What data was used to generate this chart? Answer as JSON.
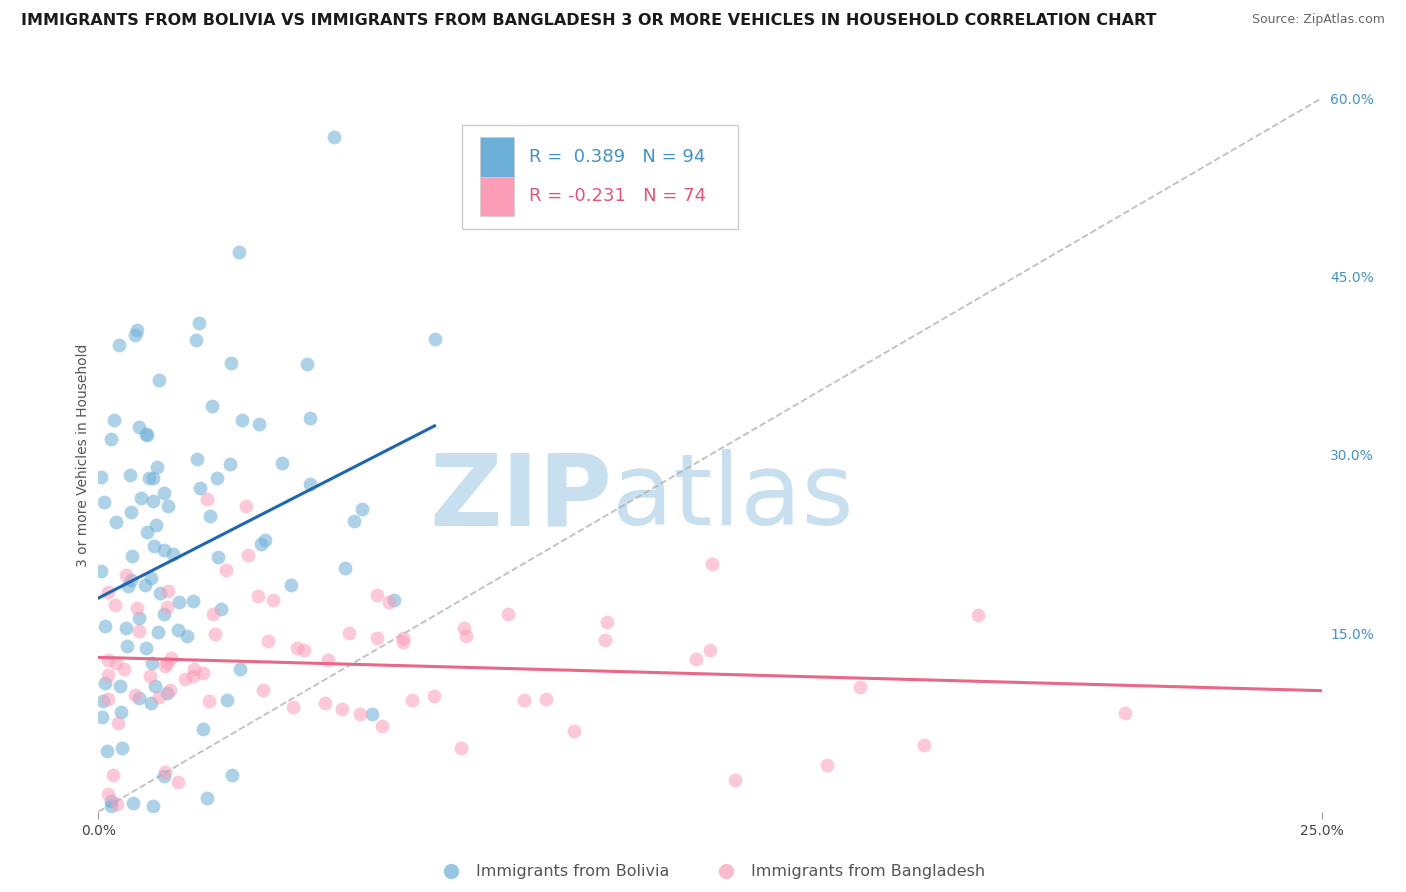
{
  "title": "IMMIGRANTS FROM BOLIVIA VS IMMIGRANTS FROM BANGLADESH 3 OR MORE VEHICLES IN HOUSEHOLD CORRELATION CHART",
  "source": "Source: ZipAtlas.com",
  "ylabel": "3 or more Vehicles in Household",
  "xlim": [
    0.0,
    0.25
  ],
  "ylim": [
    0.0,
    0.6
  ],
  "x_ticks": [
    0.0,
    0.25
  ],
  "x_tick_labels": [
    "0.0%",
    "25.0%"
  ],
  "y_ticks_right": [
    0.15,
    0.3,
    0.45,
    0.6
  ],
  "y_tick_labels_right": [
    "15.0%",
    "30.0%",
    "45.0%",
    "60.0%"
  ],
  "bolivia_color": "#6baed6",
  "bangladesh_color": "#fc9db8",
  "bolivia_line_color": "#2166ac",
  "bangladesh_line_color": "#e8688a",
  "bolivia_R": 0.389,
  "bolivia_N": 94,
  "bangladesh_R": -0.231,
  "bangladesh_N": 74,
  "bolivia_label": "Immigrants from Bolivia",
  "bangladesh_label": "Immigrants from Bangladesh",
  "watermark_zip": "ZIP",
  "watermark_atlas": "atlas",
  "watermark_color": "#c8dff0",
  "background_color": "#ffffff",
  "grid_color": "#cccccc",
  "title_fontsize": 11.5,
  "axis_label_fontsize": 10,
  "tick_fontsize": 10,
  "legend_fontsize": 13,
  "right_tick_color": "#4393c3"
}
